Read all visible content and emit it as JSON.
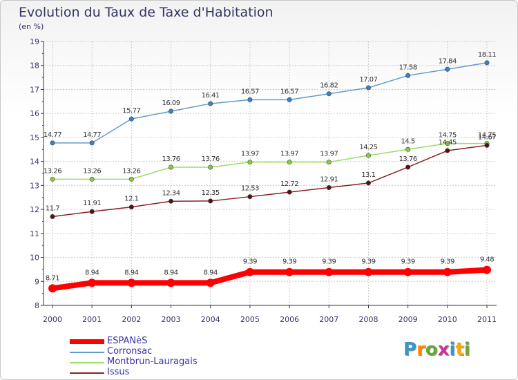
{
  "title": "Evolution du Taux de Taxe d'Habitation",
  "subtitle": "(en %)",
  "logo_text": "Proxiti",
  "colors": {
    "axis": "#333333",
    "grid": "#cccccc",
    "text": "#333366",
    "legend_text": "#3333aa"
  },
  "chart_data": {
    "type": "line",
    "title": "Evolution du Taux de Taxe d'Habitation",
    "ylabel": "(en %)",
    "xlabel": "",
    "x": [
      "2000",
      "2001",
      "2002",
      "2003",
      "2004",
      "2005",
      "2006",
      "2007",
      "2008",
      "2009",
      "2010",
      "2011"
    ],
    "ylim": [
      8,
      19
    ],
    "yticks": [
      "8",
      "9",
      "10",
      "11",
      "12",
      "13",
      "14",
      "15",
      "16",
      "17",
      "18",
      "19"
    ],
    "grid": true,
    "legend_position": "bottom-left",
    "series": [
      {
        "name": "ESPANèS",
        "color": "#ff0000",
        "marker": "#ff0000",
        "thick": true,
        "values": [
          8.71,
          8.94,
          8.94,
          8.94,
          8.94,
          9.39,
          9.39,
          9.39,
          9.39,
          9.39,
          9.39,
          9.48
        ],
        "labels": [
          "8.71",
          "8.94",
          "8.94",
          "8.94",
          "8.94",
          "9.39",
          "9.39",
          "9.39",
          "9.39",
          "9.39",
          "9.39",
          "9.48"
        ]
      },
      {
        "name": "Corronsac",
        "color": "#6699cc",
        "marker": "#3b7fc4",
        "thick": false,
        "values": [
          14.77,
          14.77,
          15.77,
          16.09,
          16.41,
          16.57,
          16.57,
          16.82,
          17.07,
          17.58,
          17.84,
          18.11
        ],
        "labels": [
          "14.77",
          "14.77",
          "15.77",
          "16.09",
          "16.41",
          "16.57",
          "16.57",
          "16.82",
          "17.07",
          "17.58",
          "17.84",
          "18.11"
        ]
      },
      {
        "name": "Montbrun-Lauragais",
        "color": "#99dd66",
        "marker": "#88cc44",
        "thick": false,
        "values": [
          13.26,
          13.26,
          13.26,
          13.76,
          13.76,
          13.97,
          13.97,
          13.97,
          14.25,
          14.5,
          14.75,
          14.75
        ],
        "labels": [
          "13.26",
          "13.26",
          "13.26",
          "13.76",
          "13.76",
          "13.97",
          "13.97",
          "13.97",
          "14.25",
          "14.5",
          "14.75",
          "14.75"
        ]
      },
      {
        "name": "Issus",
        "color": "#882222",
        "marker": "#551111",
        "thick": false,
        "values": [
          11.7,
          11.91,
          12.1,
          12.34,
          12.35,
          12.53,
          12.72,
          12.91,
          13.1,
          13.76,
          14.45,
          14.67
        ],
        "labels": [
          "11.7",
          "11.91",
          "12.1",
          "12.34",
          "12.35",
          "12.53",
          "12.72",
          "12.91",
          "13.1",
          "13.76",
          "14.45",
          "14.67"
        ]
      }
    ]
  }
}
